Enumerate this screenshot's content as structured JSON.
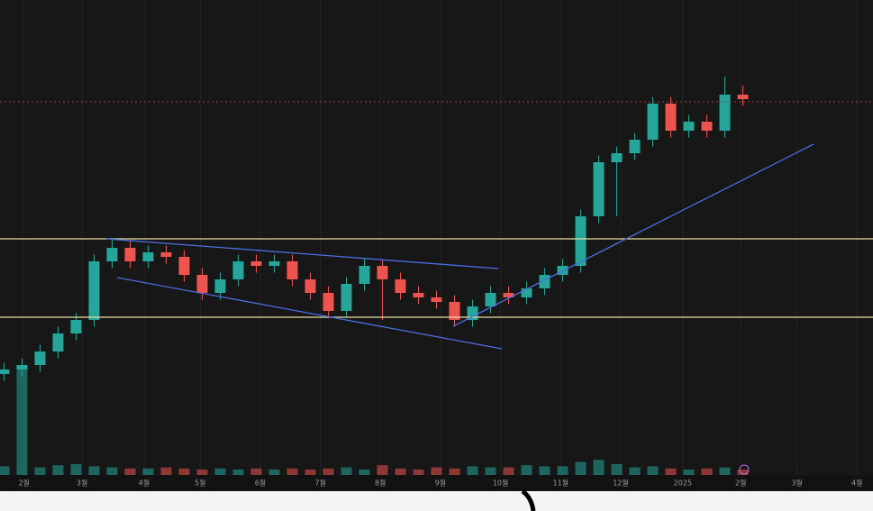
{
  "chart_data": {
    "type": "candlestick",
    "x": [
      0,
      9,
      18,
      27,
      36,
      45,
      54,
      63,
      72,
      81,
      90,
      99,
      108,
      117,
      126,
      135,
      144,
      153,
      162,
      171,
      180,
      189,
      198,
      207,
      216,
      225,
      234,
      243,
      252,
      261,
      270,
      279,
      288,
      297,
      306,
      315,
      324,
      333,
      342,
      351,
      360,
      369
    ],
    "open": [
      25,
      26,
      27,
      30,
      34,
      37,
      50,
      53,
      50,
      52,
      51,
      47,
      43,
      46,
      50,
      49,
      50,
      46,
      43,
      39,
      45,
      49,
      46,
      43,
      42,
      41,
      37,
      40,
      43,
      42,
      44,
      47,
      49,
      60,
      72,
      74,
      77,
      85,
      79,
      81,
      79,
      87
    ],
    "high": [
      27.5,
      28.5,
      31.5,
      35.5,
      38.5,
      51.5,
      55,
      54.5,
      53.5,
      53.5,
      52.5,
      48.5,
      47.5,
      51.5,
      51.5,
      51.5,
      51.5,
      47.5,
      44.5,
      46.5,
      50.5,
      50.5,
      47.5,
      44.5,
      43.5,
      42.5,
      41.5,
      44.5,
      44.5,
      45.5,
      48.5,
      50.5,
      61.5,
      73.5,
      75.5,
      78.5,
      86.5,
      86.5,
      82.5,
      82.5,
      91,
      89
    ],
    "low": [
      23.5,
      24.5,
      25.5,
      28.5,
      32.5,
      35.5,
      48.5,
      48.5,
      48.5,
      49.5,
      45.5,
      41.5,
      41.5,
      44.5,
      47.5,
      47.5,
      44.5,
      41.5,
      37.5,
      37.5,
      43.5,
      37,
      41.5,
      40.5,
      39.5,
      35.5,
      35.5,
      38.5,
      40.5,
      40.5,
      42.5,
      45.5,
      47.5,
      58.5,
      60,
      72.5,
      75.5,
      77.5,
      77.5,
      77.5,
      77.5,
      84.5
    ],
    "close": [
      26,
      27,
      30,
      34,
      37,
      50,
      53,
      50,
      52,
      51,
      47,
      43,
      46,
      50,
      49,
      50,
      46,
      43,
      39,
      45,
      49,
      46,
      43,
      42,
      41,
      37,
      40,
      43,
      42,
      44,
      47,
      49,
      60,
      72,
      74,
      77,
      85,
      79,
      81,
      79,
      87,
      86
    ],
    "volume": [
      8,
      98,
      7,
      9,
      10,
      8,
      7,
      6,
      6,
      7,
      6,
      5,
      6,
      5,
      6,
      5,
      6,
      5,
      6,
      7,
      5,
      9,
      6,
      5,
      7,
      6,
      8,
      7,
      7,
      9,
      8,
      8,
      12,
      14,
      10,
      7,
      8,
      6,
      5,
      6,
      7,
      5
    ],
    "colors": {
      "up": "#26a69a",
      "down": "#ef5350"
    },
    "xlim": [
      -2,
      434
    ],
    "ylim": [
      0,
      108
    ],
    "volume_lim": [
      0,
      100
    ],
    "xticks": [
      {
        "value": 10,
        "label": "2월"
      },
      {
        "value": 39,
        "label": "3월"
      },
      {
        "value": 70,
        "label": "4월"
      },
      {
        "value": 98,
        "label": "5월"
      },
      {
        "value": 128,
        "label": "6월"
      },
      {
        "value": 158,
        "label": "7월"
      },
      {
        "value": 188,
        "label": "8월"
      },
      {
        "value": 218,
        "label": "9월"
      },
      {
        "value": 248,
        "label": "10월"
      },
      {
        "value": 278,
        "label": "11월"
      },
      {
        "value": 308,
        "label": "12월"
      },
      {
        "value": 339,
        "label": "2025"
      },
      {
        "value": 368,
        "label": "2월"
      },
      {
        "value": 396,
        "label": "3월"
      },
      {
        "value": 426,
        "label": "4월"
      }
    ],
    "grid": true
  }
}
